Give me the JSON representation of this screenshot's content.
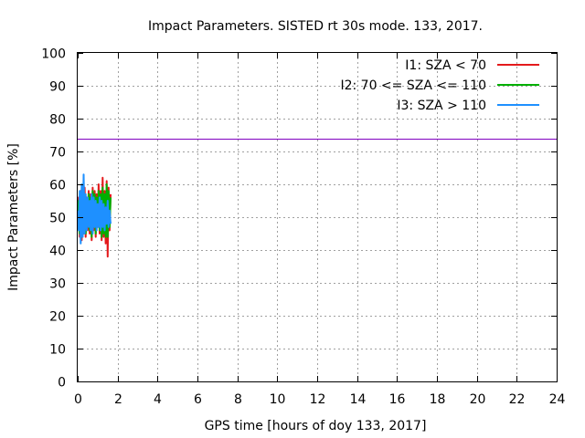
{
  "chart_data": {
    "type": "line",
    "title": "Impact Parameters. SISTED rt 30s mode. 133, 2017.",
    "xlabel": "GPS time [hours of doy 133, 2017]",
    "ylabel": "Impact Parameters [%]",
    "xlim": [
      0,
      24
    ],
    "ylim": [
      0,
      100
    ],
    "xticks": [
      0,
      2,
      4,
      6,
      8,
      10,
      12,
      14,
      16,
      18,
      20,
      22,
      24
    ],
    "yticks": [
      0,
      10,
      20,
      30,
      40,
      50,
      60,
      70,
      80,
      90,
      100
    ],
    "grid": true,
    "legend_position": "top-right",
    "series": [
      {
        "name": "I1: SZA < 70",
        "color": "#e41a1c",
        "x": [
          0.0,
          0.05,
          0.1,
          0.15,
          0.2,
          0.25,
          0.3,
          0.35,
          0.4,
          0.45,
          0.5,
          0.55,
          0.6,
          0.65,
          0.7,
          0.75,
          0.8,
          0.85,
          0.9,
          0.95,
          1.0,
          1.05,
          1.1,
          1.15,
          1.2,
          1.25,
          1.3,
          1.35,
          1.4,
          1.45,
          1.5,
          1.55,
          1.6,
          1.65
        ],
        "y": [
          47,
          56,
          44,
          58,
          43,
          57,
          45,
          59,
          44,
          56,
          46,
          58,
          45,
          57,
          43,
          59,
          46,
          58,
          44,
          57,
          47,
          60,
          45,
          58,
          43,
          62,
          44,
          58,
          42,
          61,
          38,
          59,
          46,
          57
        ]
      },
      {
        "name": "I2: 70 <= SZA <= 110",
        "color": "#00b000",
        "x": [
          0.0,
          0.05,
          0.1,
          0.15,
          0.2,
          0.25,
          0.3,
          0.35,
          0.4,
          0.45,
          0.5,
          0.55,
          0.6,
          0.65,
          0.7,
          0.75,
          0.8,
          0.85,
          0.9,
          0.95,
          1.0,
          1.05,
          1.1,
          1.15,
          1.2,
          1.25,
          1.3,
          1.35,
          1.4,
          1.45,
          1.5,
          1.55,
          1.6,
          1.65
        ],
        "y": [
          48,
          55,
          45,
          57,
          44,
          56,
          46,
          57,
          45,
          55,
          47,
          57,
          46,
          56,
          44,
          58,
          47,
          57,
          45,
          56,
          48,
          58,
          46,
          57,
          44,
          59,
          45,
          57,
          44,
          60,
          44,
          58,
          47,
          56
        ]
      },
      {
        "name": "I3: SZA > 110",
        "color": "#1e90ff",
        "x": [
          0.0,
          0.05,
          0.1,
          0.15,
          0.2,
          0.25,
          0.3,
          0.35,
          0.4,
          0.45,
          0.5,
          0.55,
          0.6,
          0.65,
          0.7,
          0.75,
          0.8,
          0.85,
          0.9,
          0.95,
          1.0,
          1.05,
          1.1,
          1.15,
          1.2,
          1.25,
          1.3,
          1.35,
          1.4,
          1.45,
          1.5,
          1.55,
          1.6,
          1.65
        ],
        "y": [
          52,
          46,
          58,
          42,
          60,
          44,
          63,
          45,
          57,
          46,
          56,
          47,
          55,
          46,
          57,
          45,
          56,
          47,
          55,
          46,
          54,
          47,
          56,
          46,
          55,
          47,
          54,
          46,
          53,
          48,
          55,
          47,
          52,
          48
        ]
      }
    ],
    "reference_line": {
      "y": 74,
      "color": "#8000c0"
    }
  }
}
